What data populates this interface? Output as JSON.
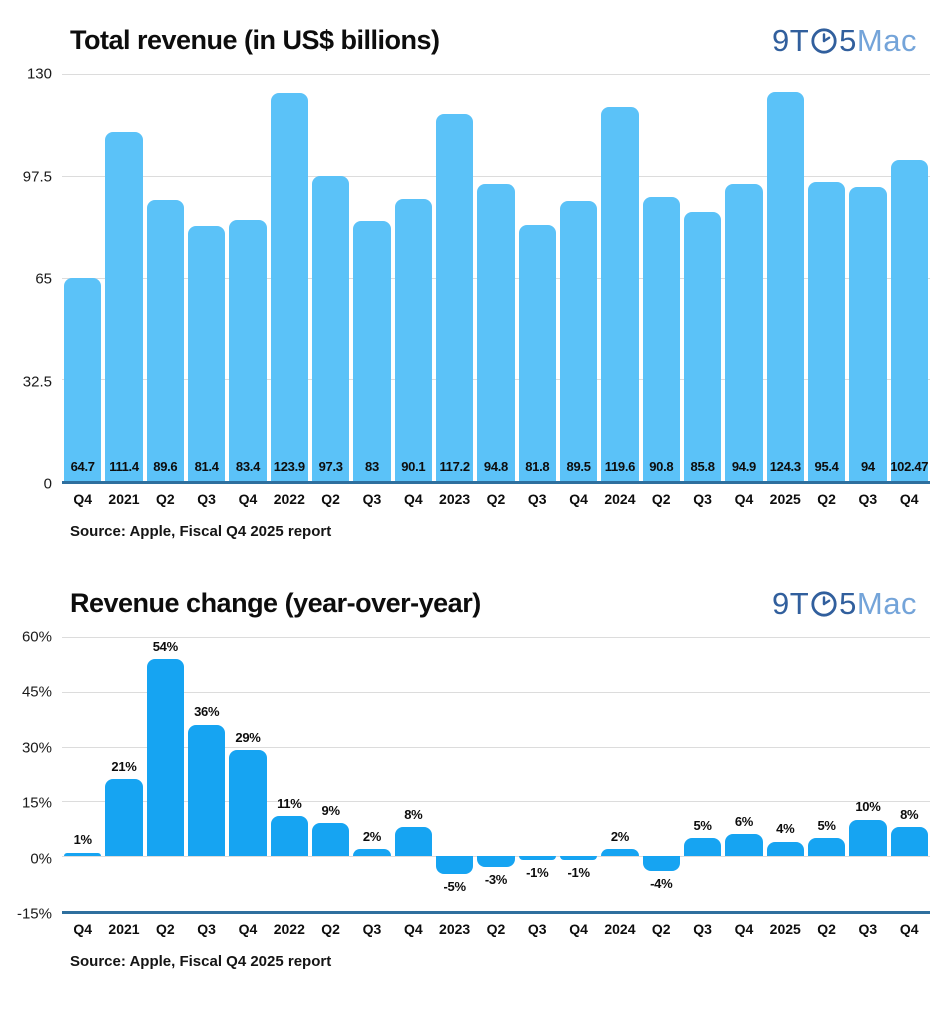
{
  "logo": {
    "part1": "9T",
    "part2": "5",
    "part3": "Mac",
    "clock_icon": "clock-icon",
    "dark_color": "#315f9d",
    "light_color": "#74a4d9"
  },
  "colors": {
    "chart1_bar": "#5bc2f8",
    "chart2_bar": "#16a4f2",
    "baseline": "#2e6f9e",
    "gridline": "#dcdcdc"
  },
  "chart_data": [
    {
      "type": "bar",
      "title": "Total revenue (in US$ billions)",
      "source": "Source: Apple, Fiscal Q4 2025 report",
      "categories": [
        "Q4",
        "2021",
        "Q2",
        "Q3",
        "Q4",
        "2022",
        "Q2",
        "Q3",
        "Q4",
        "2023",
        "Q2",
        "Q3",
        "Q4",
        "2024",
        "Q2",
        "Q3",
        "Q4",
        "2025",
        "Q2",
        "Q3",
        "Q4"
      ],
      "values": [
        64.7,
        111.4,
        89.6,
        81.4,
        83.4,
        123.9,
        97.3,
        83,
        90.1,
        117.2,
        94.8,
        81.8,
        89.5,
        119.6,
        90.8,
        85.8,
        94.9,
        124.3,
        95.4,
        94,
        102.47
      ],
      "labels": [
        "64.7",
        "111.4",
        "89.6",
        "81.4",
        "83.4",
        "123.9",
        "97.3",
        "83",
        "90.1",
        "117.2",
        "94.8",
        "81.8",
        "89.5",
        "119.6",
        "90.8",
        "85.8",
        "94.9",
        "124.3",
        "95.4",
        "94",
        "102.47"
      ],
      "ylim": [
        0,
        130
      ],
      "yticks": [
        {
          "label": "130",
          "value": 130
        },
        {
          "label": "97.5",
          "value": 97.5
        },
        {
          "label": "65",
          "value": 65
        },
        {
          "label": "32.5",
          "value": 32.5
        },
        {
          "label": "0",
          "value": 0
        }
      ],
      "bar_color": "#5bc2f8",
      "label_placement": "inside",
      "grid": true,
      "legend": "none"
    },
    {
      "type": "bar",
      "title": "Revenue change (year-over-year)",
      "source": "Source: Apple, Fiscal Q4 2025 report",
      "categories": [
        "Q4",
        "2021",
        "Q2",
        "Q3",
        "Q4",
        "2022",
        "Q2",
        "Q3",
        "Q4",
        "2023",
        "Q2",
        "Q3",
        "Q4",
        "2024",
        "Q2",
        "Q3",
        "Q4",
        "2025",
        "Q2",
        "Q3",
        "Q4"
      ],
      "values": [
        1,
        21,
        54,
        36,
        29,
        11,
        9,
        2,
        8,
        -5,
        -3,
        -1,
        -1,
        2,
        -4,
        5,
        6,
        4,
        5,
        10,
        8
      ],
      "labels": [
        "1%",
        "21%",
        "54%",
        "36%",
        "29%",
        "11%",
        "9%",
        "2%",
        "8%",
        "-5%",
        "-3%",
        "-1%",
        "-1%",
        "2%",
        "-4%",
        "5%",
        "6%",
        "4%",
        "5%",
        "10%",
        "8%"
      ],
      "ylim": [
        -15,
        60
      ],
      "yticks": [
        {
          "label": "60%",
          "value": 60
        },
        {
          "label": "45%",
          "value": 45
        },
        {
          "label": "30%",
          "value": 30
        },
        {
          "label": "15%",
          "value": 15
        },
        {
          "label": "0%",
          "value": 0
        },
        {
          "label": "-15%",
          "value": -15
        }
      ],
      "bar_color": "#16a4f2",
      "label_placement": "outside",
      "grid": true,
      "legend": "none"
    }
  ]
}
